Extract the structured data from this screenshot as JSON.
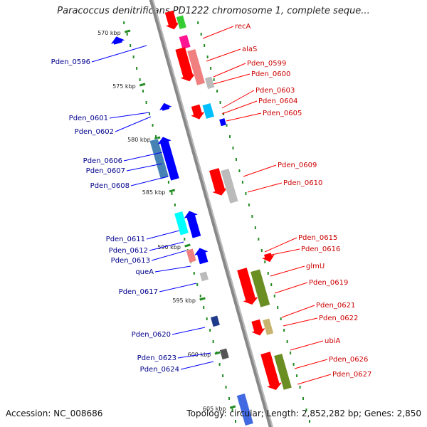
{
  "title": "Paracoccus denitrificans PD1222 chromosome 1, complete seque...",
  "footer": {
    "accession": "Accession: NC_008686",
    "summary": "Topology: circular; Length: 2,852,282 bp; Genes: 2,850"
  },
  "ticks": [
    "570 kbp",
    "575 kbp",
    "580 kbp",
    "585 kbp",
    "590 kbp",
    "595 kbp",
    "600 kbp",
    "605 kbp"
  ],
  "labels_forward": [
    "recA",
    "alaS",
    "Pden_0599",
    "Pden_0600",
    "Pden_0603",
    "Pden_0604",
    "Pden_0605",
    "Pden_0609",
    "Pden_0610",
    "Pden_0615",
    "Pden_0616",
    "glmU",
    "Pden_0619",
    "Pden_0621",
    "Pden_0622",
    "ubiA",
    "Pden_0626",
    "Pden_0627"
  ],
  "labels_reverse": [
    "Pden_0596",
    "Pden_0601",
    "Pden_0602",
    "Pden_0606",
    "Pden_0607",
    "Pden_0608",
    "Pden_0611",
    "Pden_0612",
    "Pden_0613",
    "queA",
    "Pden_0617",
    "Pden_0620",
    "Pden_0623",
    "Pden_0624"
  ],
  "colors": {
    "forward": "#ff0000",
    "reverse": "#0000ff",
    "backbone": "#888888",
    "tick": "#228b22",
    "label_forward": "#cc0000",
    "label_reverse": "#00008b"
  }
}
